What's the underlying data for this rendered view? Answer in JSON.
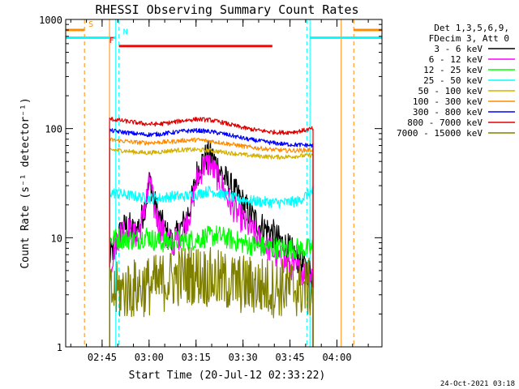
{
  "chart_data": {
    "type": "line",
    "title": "RHESSI Observing Summary Count Rates",
    "xlabel": "Start Time (20-Jul-12 02:33:22)",
    "ylabel": "Count Rate (s⁻¹ detector⁻¹)",
    "yscale": "log",
    "ylim": [
      1,
      1000
    ],
    "xlim_minutes": [
      0,
      101
    ],
    "y_ticks": [
      {
        "value": 1,
        "label": "1"
      },
      {
        "value": 10,
        "label": "10"
      },
      {
        "value": 100,
        "label": "100"
      },
      {
        "value": 1000,
        "label": "1000"
      }
    ],
    "x_ticks": [
      {
        "minute": 11.63,
        "label": "02:45"
      },
      {
        "minute": 26.63,
        "label": "03:00"
      },
      {
        "minute": 41.63,
        "label": "03:15"
      },
      {
        "minute": 56.63,
        "label": "03:30"
      },
      {
        "minute": 71.63,
        "label": "03:45"
      },
      {
        "minute": 86.63,
        "label": "04:00"
      }
    ],
    "legend_header": [
      "Det 1,3,5,6,9,",
      "FDecim 3, Att 0"
    ],
    "legend_position": "right",
    "grid": false,
    "data_window_minutes": [
      14,
      79
    ],
    "series": [
      {
        "name": "3 - 6 keV",
        "color": "#000000",
        "points": [
          [
            14,
            6.5
          ],
          [
            16,
            9
          ],
          [
            18,
            12
          ],
          [
            20,
            13
          ],
          [
            22,
            11
          ],
          [
            24,
            14
          ],
          [
            26,
            24
          ],
          [
            27,
            34
          ],
          [
            28,
            22
          ],
          [
            30,
            15
          ],
          [
            32,
            11
          ],
          [
            34,
            9
          ],
          [
            36,
            11
          ],
          [
            38,
            14
          ],
          [
            40,
            20
          ],
          [
            42,
            40
          ],
          [
            44,
            52
          ],
          [
            46,
            58
          ],
          [
            48,
            48
          ],
          [
            50,
            38
          ],
          [
            52,
            31
          ],
          [
            54,
            26
          ],
          [
            56,
            22
          ],
          [
            58,
            18
          ],
          [
            60,
            15
          ],
          [
            62,
            13
          ],
          [
            64,
            12
          ],
          [
            66,
            11
          ],
          [
            68,
            9.5
          ],
          [
            70,
            8.5
          ],
          [
            72,
            7.5
          ],
          [
            74,
            6.5
          ],
          [
            76,
            5.5
          ],
          [
            79,
            4.5
          ]
        ]
      },
      {
        "name": "6 - 12 keV",
        "color": "#ff00ff",
        "points": [
          [
            14,
            5
          ],
          [
            16,
            9
          ],
          [
            18,
            12
          ],
          [
            20,
            12
          ],
          [
            22,
            10
          ],
          [
            24,
            13
          ],
          [
            26,
            24
          ],
          [
            27,
            35
          ],
          [
            28,
            20
          ],
          [
            30,
            13
          ],
          [
            32,
            10
          ],
          [
            34,
            9
          ],
          [
            36,
            10
          ],
          [
            38,
            13
          ],
          [
            40,
            18
          ],
          [
            42,
            35
          ],
          [
            44,
            45
          ],
          [
            46,
            48
          ],
          [
            48,
            38
          ],
          [
            50,
            30
          ],
          [
            52,
            22
          ],
          [
            54,
            18
          ],
          [
            56,
            15
          ],
          [
            58,
            13
          ],
          [
            60,
            11
          ],
          [
            62,
            9.5
          ],
          [
            64,
            8.5
          ],
          [
            66,
            7.5
          ],
          [
            68,
            6.5
          ],
          [
            70,
            6
          ],
          [
            72,
            5.5
          ],
          [
            74,
            5
          ],
          [
            76,
            4.8
          ],
          [
            79,
            4.6
          ]
        ]
      },
      {
        "name": "12 - 25 keV",
        "color": "#00ff00",
        "points": [
          [
            14,
            9.5
          ],
          [
            18,
            10
          ],
          [
            22,
            9.5
          ],
          [
            26,
            10.5
          ],
          [
            28,
            9.5
          ],
          [
            32,
            9
          ],
          [
            36,
            9.5
          ],
          [
            40,
            9.5
          ],
          [
            44,
            10
          ],
          [
            48,
            10.5
          ],
          [
            52,
            9.8
          ],
          [
            56,
            9
          ],
          [
            60,
            8.5
          ],
          [
            64,
            8.2
          ],
          [
            68,
            8
          ],
          [
            72,
            8
          ],
          [
            76,
            7.8
          ],
          [
            79,
            8
          ]
        ]
      },
      {
        "name": "25 - 50 keV",
        "color": "#00ffff",
        "points": [
          [
            14,
            26
          ],
          [
            18,
            25
          ],
          [
            22,
            24
          ],
          [
            26,
            23
          ],
          [
            30,
            23
          ],
          [
            34,
            24
          ],
          [
            38,
            24
          ],
          [
            42,
            25
          ],
          [
            44,
            26
          ],
          [
            46,
            27
          ],
          [
            50,
            25
          ],
          [
            54,
            23
          ],
          [
            58,
            22
          ],
          [
            62,
            21.5
          ],
          [
            66,
            21
          ],
          [
            70,
            21
          ],
          [
            74,
            21.5
          ],
          [
            79,
            27
          ]
        ]
      },
      {
        "name": "50 - 100 keV",
        "color": "#d4b000",
        "points": [
          [
            14,
            64
          ],
          [
            18,
            63
          ],
          [
            22,
            61
          ],
          [
            26,
            60
          ],
          [
            30,
            61
          ],
          [
            34,
            63
          ],
          [
            38,
            64
          ],
          [
            42,
            64
          ],
          [
            46,
            63
          ],
          [
            50,
            61
          ],
          [
            54,
            59
          ],
          [
            58,
            57
          ],
          [
            62,
            56
          ],
          [
            66,
            55
          ],
          [
            70,
            55
          ],
          [
            74,
            56
          ],
          [
            79,
            57
          ]
        ]
      },
      {
        "name": "100 - 300 keV",
        "color": "#ff8c00",
        "points": [
          [
            14,
            79
          ],
          [
            18,
            77
          ],
          [
            22,
            75
          ],
          [
            26,
            74
          ],
          [
            30,
            75
          ],
          [
            34,
            76
          ],
          [
            38,
            78
          ],
          [
            42,
            79
          ],
          [
            46,
            77
          ],
          [
            50,
            74
          ],
          [
            54,
            71
          ],
          [
            58,
            68
          ],
          [
            62,
            66
          ],
          [
            66,
            64
          ],
          [
            70,
            63
          ],
          [
            74,
            63
          ],
          [
            79,
            64
          ]
        ]
      },
      {
        "name": "300 - 800 keV",
        "color": "#0000ff",
        "points": [
          [
            14,
            96
          ],
          [
            18,
            93
          ],
          [
            22,
            90
          ],
          [
            26,
            88
          ],
          [
            30,
            89
          ],
          [
            34,
            92
          ],
          [
            38,
            95
          ],
          [
            42,
            96
          ],
          [
            46,
            94
          ],
          [
            50,
            90
          ],
          [
            54,
            85
          ],
          [
            58,
            80
          ],
          [
            62,
            77
          ],
          [
            66,
            74
          ],
          [
            70,
            72
          ],
          [
            74,
            71
          ],
          [
            79,
            70
          ]
        ]
      },
      {
        "name": "800 - 7000 keV",
        "color": "#e00000",
        "points": [
          [
            14,
            123
          ],
          [
            18,
            118
          ],
          [
            22,
            114
          ],
          [
            26,
            110
          ],
          [
            30,
            110
          ],
          [
            34,
            114
          ],
          [
            38,
            119
          ],
          [
            42,
            122
          ],
          [
            46,
            120
          ],
          [
            50,
            114
          ],
          [
            54,
            106
          ],
          [
            58,
            100
          ],
          [
            62,
            96
          ],
          [
            66,
            93
          ],
          [
            70,
            92
          ],
          [
            74,
            94
          ],
          [
            79,
            100
          ]
        ]
      },
      {
        "name": "7000 - 15000 keV",
        "color": "#808000",
        "points": [
          [
            14,
            3
          ],
          [
            18,
            3.3
          ],
          [
            22,
            3.4
          ],
          [
            26,
            3.6
          ],
          [
            30,
            3.8
          ],
          [
            34,
            4.2
          ],
          [
            38,
            4.6
          ],
          [
            42,
            4.6
          ],
          [
            46,
            4.3
          ],
          [
            50,
            4
          ],
          [
            54,
            3.8
          ],
          [
            58,
            3.7
          ],
          [
            62,
            3.6
          ],
          [
            66,
            3.5
          ],
          [
            70,
            3.5
          ],
          [
            74,
            3.5
          ],
          [
            79,
            3.4
          ]
        ]
      }
    ],
    "state_markers": [
      {
        "label": "S",
        "color": "#ff8c00",
        "dashed_minutes": [
          6,
          92
        ],
        "solid_minutes": [
          14,
          88
        ],
        "bar_value": 800,
        "bar_minutes": [
          [
            0,
            6
          ],
          [
            92,
            101
          ]
        ]
      },
      {
        "label": "N",
        "color": "#00ffff",
        "dashed_minutes": [
          17,
          77
        ],
        "solid_minutes": [
          16,
          78
        ],
        "bar_value": 680,
        "bar_minutes": [
          [
            0,
            16
          ],
          [
            78,
            101
          ]
        ]
      },
      {
        "label": "F",
        "color": "#ff0000",
        "bar_value": 570,
        "bar_minutes": [
          [
            17,
            66
          ]
        ]
      }
    ],
    "footer_date": "24-Oct-2021 03:18"
  }
}
